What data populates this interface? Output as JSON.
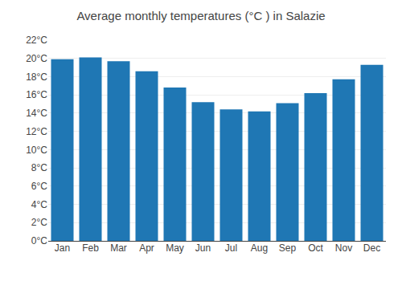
{
  "chart_data": {
    "type": "bar",
    "title": "Average monthly temperatures (°C ) in Salazie",
    "categories": [
      "Jan",
      "Feb",
      "Mar",
      "Apr",
      "May",
      "Jun",
      "Jul",
      "Aug",
      "Sep",
      "Oct",
      "Nov",
      "Dec"
    ],
    "values": [
      19.9,
      20.1,
      19.7,
      18.6,
      16.8,
      15.2,
      14.4,
      14.2,
      15.1,
      16.2,
      17.7,
      19.3
    ],
    "ylim": [
      0,
      22
    ],
    "yticks": [
      {
        "value": 0,
        "label": "0°C"
      },
      {
        "value": 2,
        "label": "2°C"
      },
      {
        "value": 4,
        "label": "4°C"
      },
      {
        "value": 6,
        "label": "6°C"
      },
      {
        "value": 8,
        "label": "8°C"
      },
      {
        "value": 10,
        "label": "10°C"
      },
      {
        "value": 12,
        "label": "12°C"
      },
      {
        "value": 14,
        "label": "14°C"
      },
      {
        "value": 16,
        "label": "16°C"
      },
      {
        "value": 18,
        "label": "18°C"
      },
      {
        "value": 20,
        "label": "20°C"
      },
      {
        "value": 22,
        "label": "22°C"
      }
    ],
    "grid": true
  }
}
